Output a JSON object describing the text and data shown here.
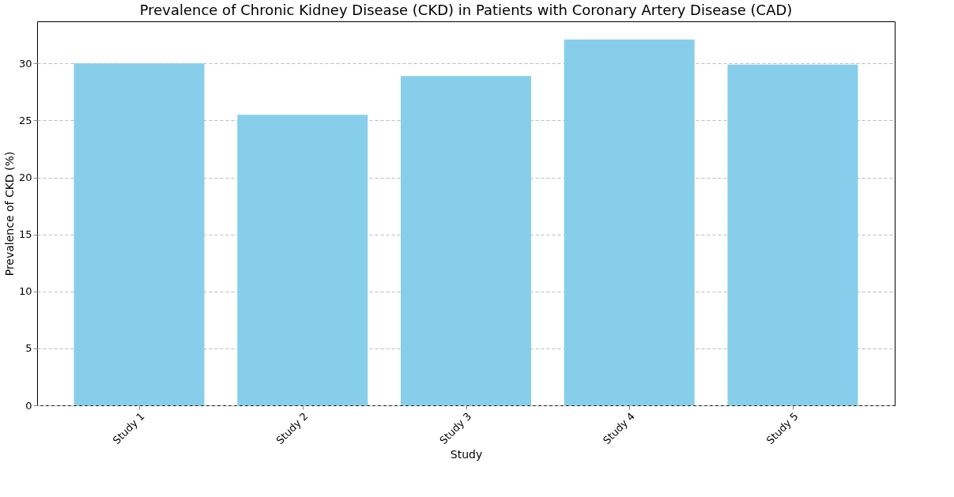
{
  "chart_data": {
    "type": "bar",
    "title": "Prevalence of Chronic Kidney Disease (CKD) in Patients with Coronary Artery Disease (CAD)",
    "xlabel": "Study",
    "ylabel": "Prevalence of CKD (%)",
    "categories": [
      "Study 1",
      "Study 2",
      "Study 3",
      "Study 4",
      "Study 5"
    ],
    "values": [
      30,
      25.5,
      28.9,
      32.1,
      29.9
    ],
    "color": "#87ceeb",
    "ylim": [
      0,
      33.7
    ],
    "yticks": [
      0,
      5,
      10,
      15,
      20,
      25,
      30
    ],
    "grid": "y",
    "line_style": "dashed"
  }
}
